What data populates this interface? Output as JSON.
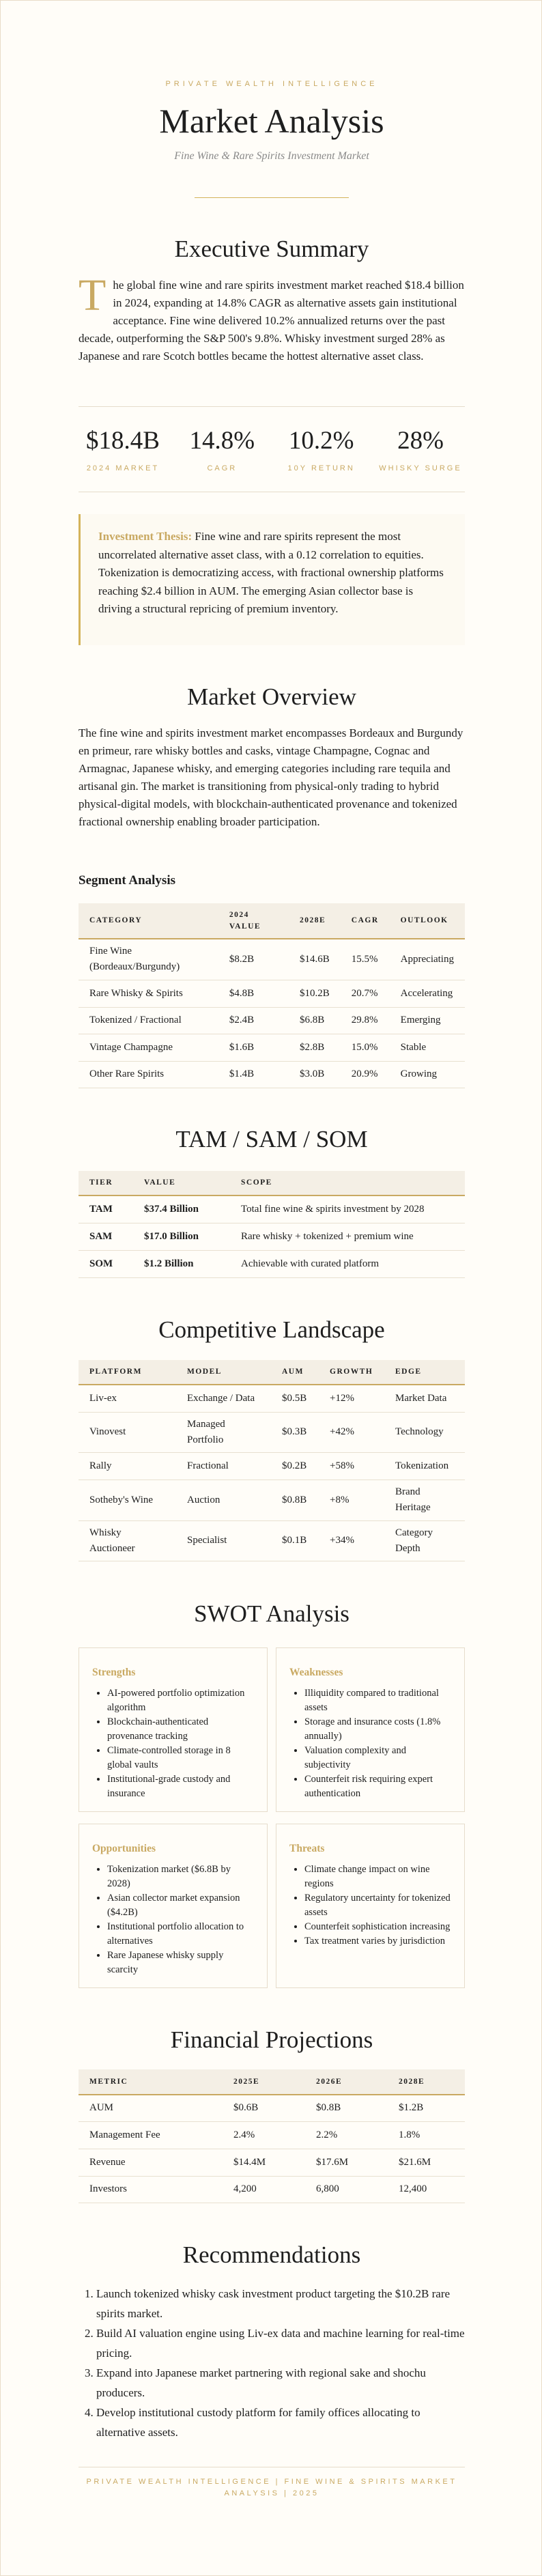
{
  "header": {
    "eyebrow": "PRIVATE WEALTH INTELLIGENCE",
    "title": "Market Analysis",
    "subtitle": "Fine Wine & Rare Spirits Investment Market"
  },
  "summary": {
    "heading": "Executive Summary",
    "dropcap": "T",
    "text": "he global fine wine and rare spirits investment market reached $18.4 billion in 2024, expanding at 14.8% CAGR as alternative assets gain institutional acceptance. Fine wine delivered 10.2% annualized returns over the past decade, outperforming the S&P 500's 9.8%. Whisky investment surged 28% as Japanese and rare Scotch bottles became the hottest alternative asset class."
  },
  "stats": [
    {
      "value": "$18.4B",
      "label": "2024 MARKET"
    },
    {
      "value": "14.8%",
      "label": "CAGR"
    },
    {
      "value": "10.2%",
      "label": "10Y RETURN"
    },
    {
      "value": "28%",
      "label": "WHISKY SURGE"
    }
  ],
  "thesis": {
    "label": "Investment Thesis:",
    "text": " Fine wine and rare spirits represent the most uncorrelated alternative asset class, with a 0.12 correlation to equities. Tokenization is democratizing access, with fractional ownership platforms reaching $2.4 billion in AUM. The emerging Asian collector base is driving a structural repricing of premium inventory."
  },
  "overview": {
    "heading": "Market Overview",
    "text": "The fine wine and spirits investment market encompasses Bordeaux and Burgundy en primeur, rare whisky bottles and casks, vintage Champagne, Cognac and Armagnac, Japanese whisky, and emerging categories including rare tequila and artisanal gin. The market is transitioning from physical-only trading to hybrid physical-digital models, with blockchain-authenticated provenance and tokenized fractional ownership enabling broader participation.",
    "segment_heading": "Segment Analysis"
  },
  "segment_table": {
    "columns": [
      "CATEGORY",
      "2024 VALUE",
      "2028E",
      "CAGR",
      "OUTLOOK"
    ],
    "rows": [
      [
        "Fine Wine (Bordeaux/Burgundy)",
        "$8.2B",
        "$14.6B",
        "15.5%",
        "Appreciating"
      ],
      [
        "Rare Whisky & Spirits",
        "$4.8B",
        "$10.2B",
        "20.7%",
        "Accelerating"
      ],
      [
        "Tokenized / Fractional",
        "$2.4B",
        "$6.8B",
        "29.8%",
        "Emerging"
      ],
      [
        "Vintage Champagne",
        "$1.6B",
        "$2.8B",
        "15.0%",
        "Stable"
      ],
      [
        "Other Rare Spirits",
        "$1.4B",
        "$3.0B",
        "20.9%",
        "Growing"
      ]
    ]
  },
  "tam": {
    "heading": "TAM / SAM / SOM",
    "columns": [
      "TIER",
      "VALUE",
      "SCOPE"
    ],
    "rows": [
      [
        "TAM",
        "$37.4 Billion",
        "Total fine wine & spirits investment by 2028"
      ],
      [
        "SAM",
        "$17.0 Billion",
        "Rare whisky + tokenized + premium wine"
      ],
      [
        "SOM",
        "$1.2 Billion",
        "Achievable with curated platform"
      ]
    ]
  },
  "competitive": {
    "heading": "Competitive Landscape",
    "columns": [
      "PLATFORM",
      "MODEL",
      "AUM",
      "GROWTH",
      "EDGE"
    ],
    "rows": [
      [
        "Liv-ex",
        "Exchange / Data",
        "$0.5B",
        "+12%",
        "Market Data"
      ],
      [
        "Vinovest",
        "Managed Portfolio",
        "$0.3B",
        "+42%",
        "Technology"
      ],
      [
        "Rally",
        "Fractional",
        "$0.2B",
        "+58%",
        "Tokenization"
      ],
      [
        "Sotheby's Wine",
        "Auction",
        "$0.8B",
        "+8%",
        "Brand Heritage"
      ],
      [
        "Whisky Auctioneer",
        "Specialist",
        "$0.1B",
        "+34%",
        "Category Depth"
      ]
    ]
  },
  "swot": {
    "heading": "SWOT Analysis",
    "boxes": [
      {
        "title": "Strengths",
        "items": [
          "AI-powered portfolio optimization algorithm",
          "Blockchain-authenticated provenance tracking",
          "Climate-controlled storage in 8 global vaults",
          "Institutional-grade custody and insurance"
        ]
      },
      {
        "title": "Weaknesses",
        "items": [
          "Illiquidity compared to traditional assets",
          "Storage and insurance costs (1.8% annually)",
          "Valuation complexity and subjectivity",
          "Counterfeit risk requiring expert authentication"
        ]
      },
      {
        "title": "Opportunities",
        "items": [
          "Tokenization market ($6.8B by 2028)",
          "Asian collector market expansion ($4.2B)",
          "Institutional portfolio allocation to alternatives",
          "Rare Japanese whisky supply scarcity"
        ]
      },
      {
        "title": "Threats",
        "items": [
          "Climate change impact on wine regions",
          "Regulatory uncertainty for tokenized assets",
          "Counterfeit sophistication increasing",
          "Tax treatment varies by jurisdiction"
        ]
      }
    ]
  },
  "financial": {
    "heading": "Financial Projections",
    "columns": [
      "METRIC",
      "2025E",
      "2026E",
      "2028E"
    ],
    "rows": [
      [
        "AUM",
        "$0.6B",
        "$0.8B",
        "$1.2B"
      ],
      [
        "Management Fee",
        "2.4%",
        "2.2%",
        "1.8%"
      ],
      [
        "Revenue",
        "$14.4M",
        "$17.6M",
        "$21.6M"
      ],
      [
        "Investors",
        "4,200",
        "6,800",
        "12,400"
      ]
    ]
  },
  "recommendations": {
    "heading": "Recommendations",
    "items": [
      "Launch tokenized whisky cask investment product targeting the $10.2B rare spirits market.",
      "Build AI valuation engine using Liv-ex data and machine learning for real-time pricing.",
      "Expand into Japanese market partnering with regional sake and shochu producers.",
      "Develop institutional custody platform for family offices allocating to alternative assets."
    ]
  },
  "footer": {
    "text": "PRIVATE WEALTH INTELLIGENCE | FINE WINE & SPIRITS MARKET ANALYSIS | 2025"
  },
  "colors": {
    "accent": "#c9a962",
    "background": "#fffdf8",
    "table_header": "#f4efe5"
  }
}
